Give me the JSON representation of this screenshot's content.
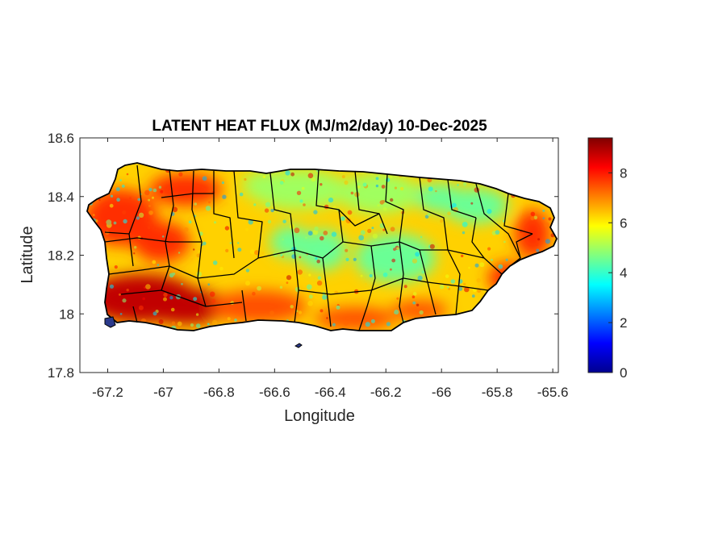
{
  "chart_data": {
    "type": "heatmap",
    "title": "LATENT HEAT FLUX (MJ/m2/day) 10-Dec-2025",
    "xlabel": "Longitude",
    "ylabel": "Latitude",
    "xlim": [
      -67.3,
      -65.58
    ],
    "ylim": [
      17.8,
      18.6
    ],
    "x_ticks": [
      "-67.2",
      "-67",
      "-66.8",
      "-66.6",
      "-66.4",
      "-66.2",
      "-66",
      "-65.8",
      "-65.6"
    ],
    "y_ticks": [
      "18.6",
      "18.4",
      "18.2",
      "18",
      "17.8"
    ],
    "colorbar": {
      "colormap": "jet",
      "range": [
        0,
        9.4
      ],
      "ticks": [
        "0",
        "2",
        "4",
        "6",
        "8"
      ]
    },
    "region": "Puerto Rico (municipality boundaries)",
    "pattern": [
      {
        "area": "southwest coast",
        "value": 8.8
      },
      {
        "area": "west / northwest",
        "value": 7.8
      },
      {
        "area": "north-central coast",
        "value": 5.0
      },
      {
        "area": "central mountains",
        "value": 4.5
      },
      {
        "area": "south coast",
        "value": 7.5
      },
      {
        "area": "northeast",
        "value": 4.5
      },
      {
        "area": "east coast",
        "value": 7.8
      }
    ]
  }
}
